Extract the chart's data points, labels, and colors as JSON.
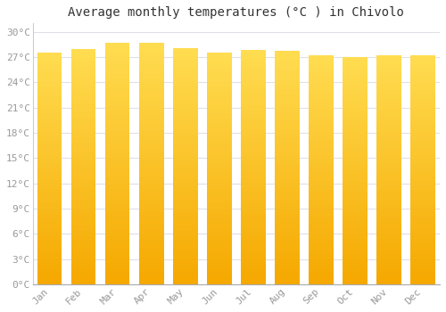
{
  "title": "Average monthly temperatures (°C ) in Chivolo",
  "months": [
    "Jan",
    "Feb",
    "Mar",
    "Apr",
    "May",
    "Jun",
    "Jul",
    "Aug",
    "Sep",
    "Oct",
    "Nov",
    "Dec"
  ],
  "values": [
    27.5,
    28.0,
    28.7,
    28.7,
    28.1,
    27.5,
    27.8,
    27.7,
    27.2,
    27.0,
    27.2,
    27.2
  ],
  "bar_color_bottom": "#F5A800",
  "bar_color_top": "#FFD966",
  "background_color": "#FFFFFF",
  "plot_bg_color": "#FFFFFF",
  "grid_color": "#E0E0E8",
  "ytick_labels": [
    "0°C",
    "3°C",
    "6°C",
    "9°C",
    "12°C",
    "15°C",
    "18°C",
    "21°C",
    "24°C",
    "27°C",
    "30°C"
  ],
  "ytick_values": [
    0,
    3,
    6,
    9,
    12,
    15,
    18,
    21,
    24,
    27,
    30
  ],
  "ylim": [
    0,
    31
  ],
  "title_fontsize": 10,
  "tick_fontsize": 8,
  "title_color": "#333333",
  "font_color": "#999999"
}
